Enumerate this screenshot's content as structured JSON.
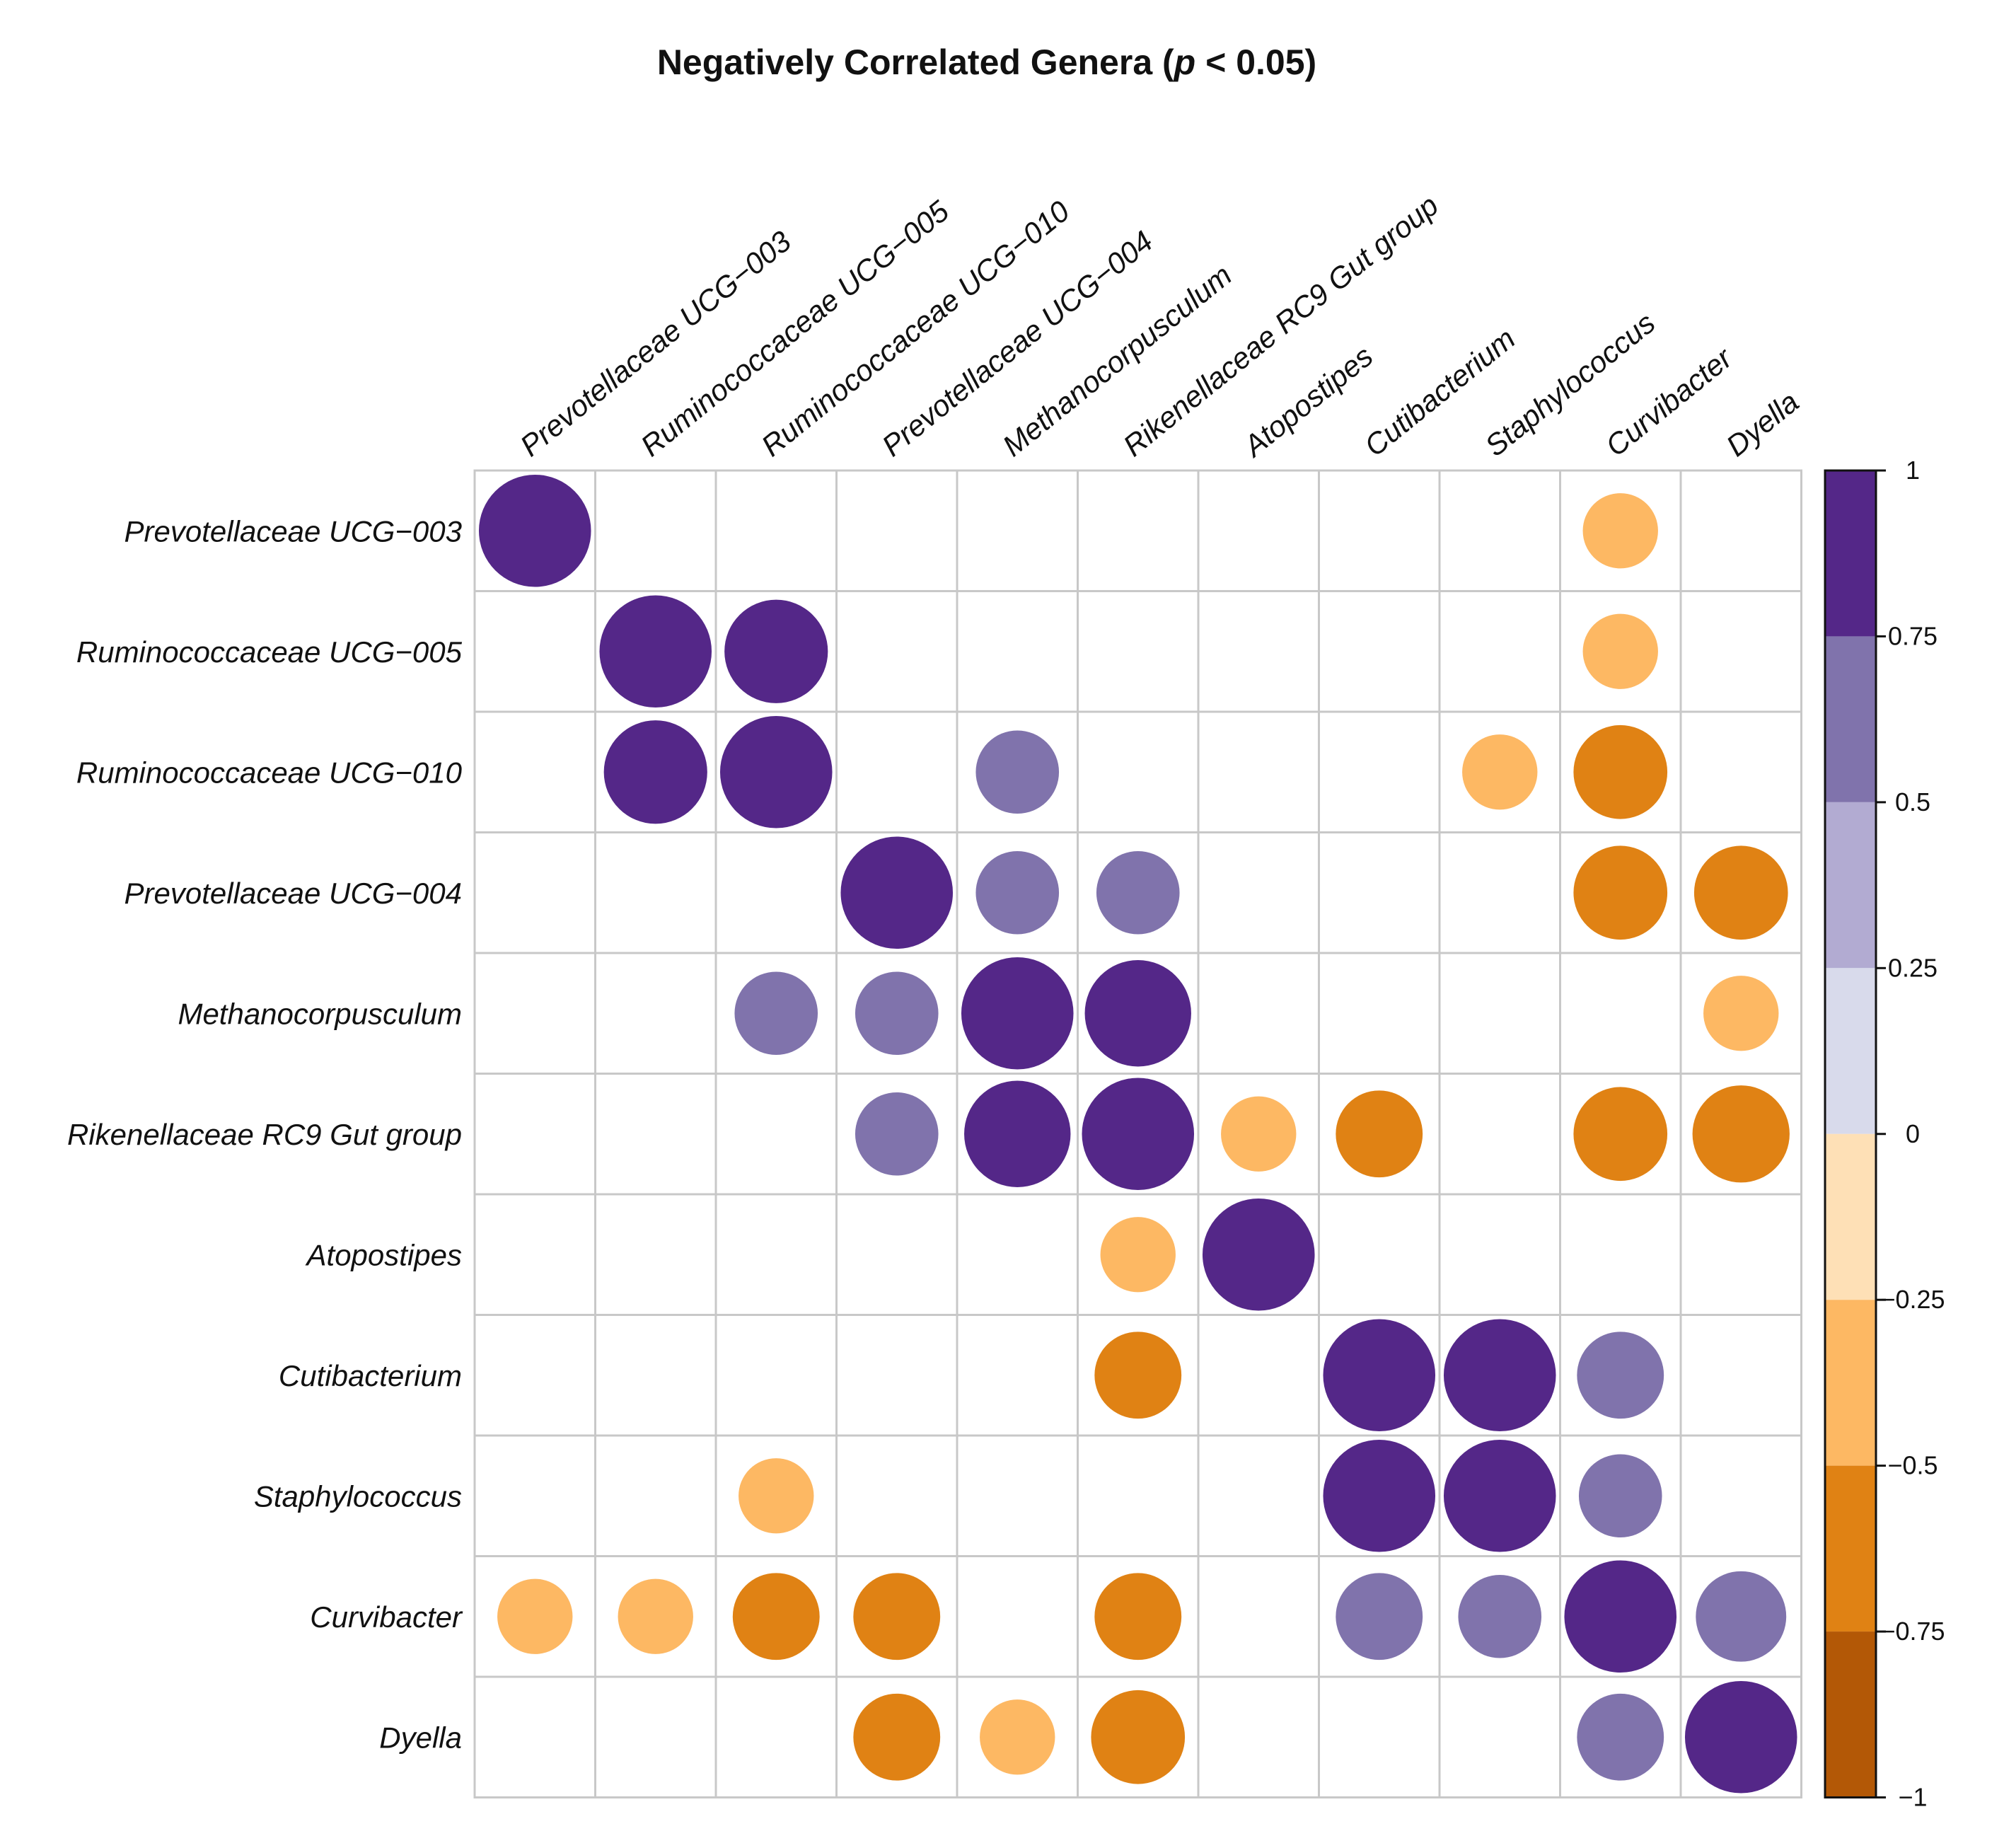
{
  "chart_data": {
    "type": "heatmap",
    "title_main": "Negatively Correlated Genera (",
    "title_p": "p",
    "title_rest": " < 0.05)",
    "rows": [
      "Prevotellaceae UCG−003",
      "Ruminococcaceae UCG−005",
      "Ruminococcaceae UCG−010",
      "Prevotellaceae UCG−004",
      "Methanocorpusculum",
      "Rikenellaceae RC9 Gut group",
      "Atopostipes",
      "Cutibacterium",
      "Staphylococcus",
      "Curvibacter",
      "Dyella"
    ],
    "columns": [
      "Prevotellaceae UCG−003",
      "Ruminococcaceae UCG−005",
      "Ruminococcaceae UCG−010",
      "Prevotellaceae UCG−004",
      "Methanocorpusculum",
      "Rikenellaceae RC9 Gut group",
      "Atopostipes",
      "Cutibacterium",
      "Staphylococcus",
      "Curvibacter",
      "Dyella"
    ],
    "values": [
      [
        1.0,
        null,
        null,
        null,
        null,
        null,
        null,
        null,
        null,
        -0.45,
        null
      ],
      [
        null,
        1.0,
        0.85,
        null,
        null,
        null,
        null,
        null,
        null,
        -0.45,
        null
      ],
      [
        null,
        0.85,
        1.0,
        null,
        0.55,
        null,
        null,
        null,
        -0.45,
        -0.7,
        null
      ],
      [
        null,
        null,
        null,
        1.0,
        0.55,
        0.55,
        null,
        null,
        null,
        -0.7,
        -0.7
      ],
      [
        null,
        null,
        0.55,
        0.55,
        1.0,
        0.9,
        null,
        null,
        null,
        null,
        -0.45
      ],
      [
        null,
        null,
        null,
        0.55,
        0.9,
        1.0,
        -0.45,
        -0.6,
        null,
        -0.7,
        -0.75
      ],
      [
        null,
        null,
        null,
        null,
        null,
        -0.45,
        1.0,
        null,
        null,
        null,
        null
      ],
      [
        null,
        null,
        null,
        null,
        null,
        -0.6,
        null,
        1.0,
        1.0,
        0.6,
        null
      ],
      [
        null,
        null,
        -0.45,
        null,
        null,
        null,
        null,
        1.0,
        1.0,
        0.55,
        null
      ],
      [
        -0.45,
        -0.45,
        -0.6,
        -0.6,
        null,
        -0.6,
        null,
        0.6,
        0.55,
        1.0,
        0.65
      ],
      [
        null,
        null,
        null,
        -0.6,
        -0.45,
        -0.7,
        null,
        null,
        0.0,
        0.6,
        1.0
      ]
    ],
    "colorbar": {
      "ticks": [
        "1",
        "0.75",
        "0.5",
        "0.25",
        "0",
        "−0.25",
        "−0.5",
        "−0.75",
        "−1"
      ],
      "range": [
        -1,
        1
      ],
      "bins": [
        {
          "from": 0.75,
          "to": 1.0,
          "color": "#542788"
        },
        {
          "from": 0.5,
          "to": 0.75,
          "color": "#8073ac"
        },
        {
          "from": 0.25,
          "to": 0.5,
          "color": "#b2abd2"
        },
        {
          "from": 0.0,
          "to": 0.25,
          "color": "#d8daeb"
        },
        {
          "from": -0.25,
          "to": 0.0,
          "color": "#fee0b6"
        },
        {
          "from": -0.5,
          "to": -0.25,
          "color": "#fdb863"
        },
        {
          "from": -0.75,
          "to": -0.5,
          "color": "#e08214"
        },
        {
          "from": -1.0,
          "to": -0.75,
          "color": "#b35806"
        }
      ]
    },
    "grid": true
  }
}
